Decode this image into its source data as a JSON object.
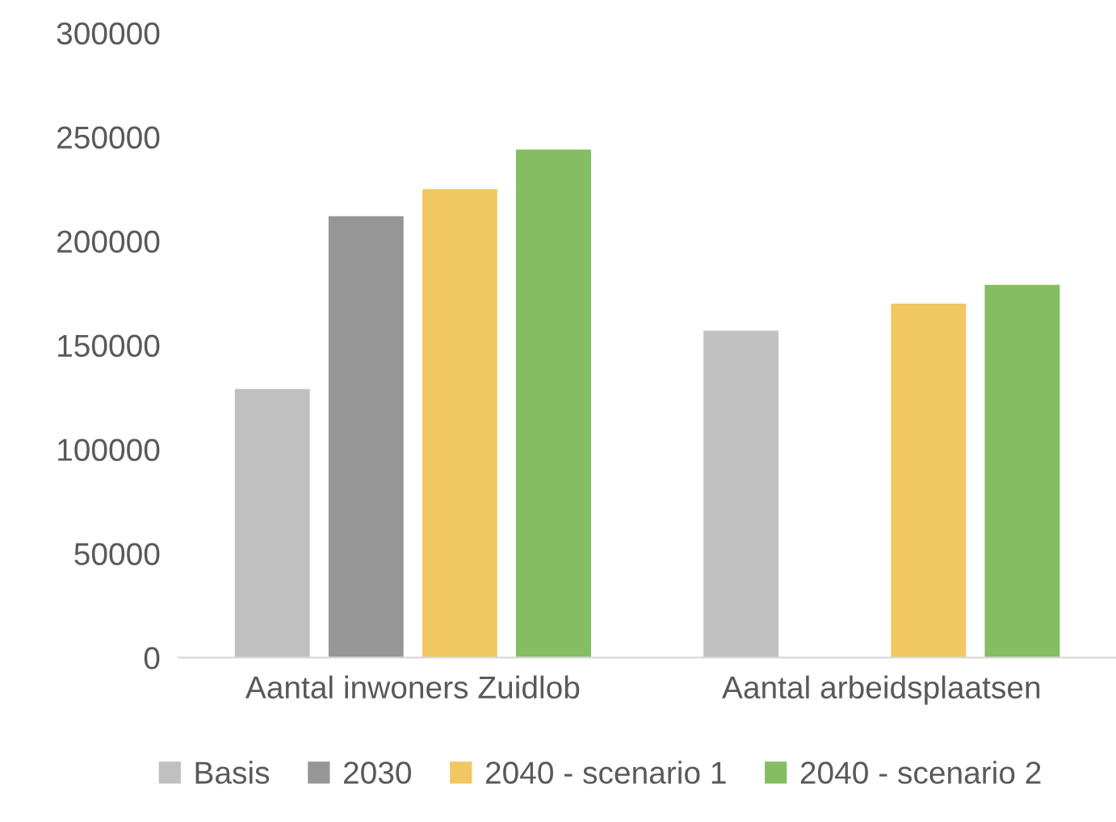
{
  "chart_data": {
    "type": "bar",
    "categories": [
      "Aantal inwoners Zuidlob",
      "Aantal arbeidsplaatsen"
    ],
    "series": [
      {
        "name": "Basis",
        "color": "#c0c0c0",
        "values": [
          129000,
          157000
        ]
      },
      {
        "name": "2030",
        "color": "#969696",
        "values": [
          212000,
          null
        ]
      },
      {
        "name": "2040 - scenario 1",
        "color": "#f1c761",
        "values": [
          225000,
          170000
        ]
      },
      {
        "name": "2040 - scenario 2",
        "color": "#84bd62",
        "values": [
          244000,
          179000
        ]
      }
    ],
    "ylim": [
      0,
      300000
    ],
    "yticks": [
      0,
      50000,
      100000,
      150000,
      200000,
      250000,
      300000
    ],
    "grid": false,
    "legend": "bottom"
  }
}
